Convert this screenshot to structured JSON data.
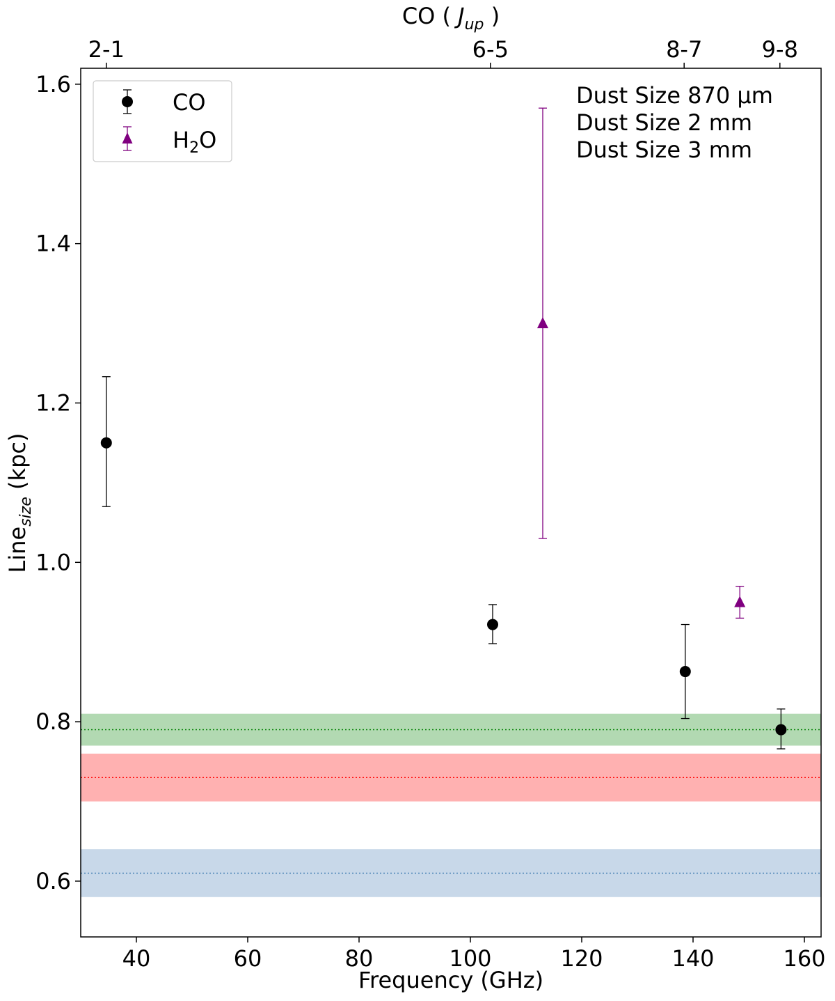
{
  "chart_data": {
    "type": "scatter",
    "xlabel": "Frequency (GHz)",
    "ylabel": {
      "base": "Line",
      "sub": "size",
      "suffix": " (kpc)"
    },
    "top_axis_label": {
      "base": "CO ( ",
      "italic": "J",
      "sub": "up",
      "suffix": " )"
    },
    "xlim": [
      30,
      163
    ],
    "ylim": [
      0.53,
      1.62
    ],
    "x_ticks": [
      40,
      60,
      80,
      100,
      120,
      140,
      160
    ],
    "y_ticks": [
      "0.6",
      "0.8",
      "1.0",
      "1.2",
      "1.4",
      "1.6"
    ],
    "top_ticks": [
      {
        "x": 34.6,
        "label": "2-1"
      },
      {
        "x": 103.6,
        "label": "6-5"
      },
      {
        "x": 138.4,
        "label": "8-7"
      },
      {
        "x": 155.6,
        "label": "9-8"
      }
    ],
    "series": [
      {
        "name": "CO",
        "marker": "circle",
        "color": "#000000",
        "points": [
          {
            "x": 34.6,
            "y": 1.15,
            "err_low": 1.07,
            "err_high": 1.233
          },
          {
            "x": 104.0,
            "y": 0.922,
            "err_low": 0.898,
            "err_high": 0.947
          },
          {
            "x": 138.6,
            "y": 0.863,
            "err_low": 0.804,
            "err_high": 0.922
          },
          {
            "x": 155.8,
            "y": 0.79,
            "err_low": 0.766,
            "err_high": 0.816
          }
        ]
      },
      {
        "name": "H",
        "name_sub": "2",
        "name_suffix": "O",
        "marker": "triangle",
        "color": "#800080",
        "points": [
          {
            "x": 113.0,
            "y": 1.3,
            "err_low": 1.03,
            "err_high": 1.57
          },
          {
            "x": 148.4,
            "y": 0.95,
            "err_low": 0.93,
            "err_high": 0.97
          }
        ]
      }
    ],
    "dust_bands": [
      {
        "label": "Dust Size 870 μm",
        "text_color": "#4682b4",
        "fill": "#c8d8e9",
        "line_color": "#4682b4",
        "center": 0.61,
        "low": 0.58,
        "high": 0.64
      },
      {
        "label": "Dust Size 2 mm",
        "text_color": "#ff0000",
        "fill": "#ffb1b1",
        "line_color": "#ff0000",
        "center": 0.73,
        "low": 0.7,
        "high": 0.76
      },
      {
        "label": "Dust Size 3 mm",
        "text_color": "#008000",
        "fill": "#b2d9b2",
        "line_color": "#008000",
        "center": 0.79,
        "low": 0.77,
        "high": 0.81
      }
    ]
  }
}
